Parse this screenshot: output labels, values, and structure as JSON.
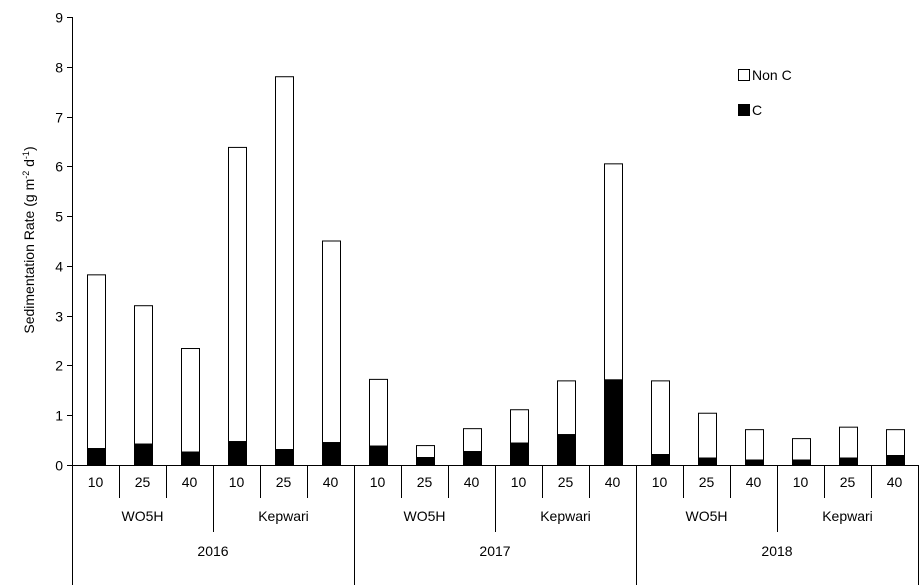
{
  "chart_data": {
    "type": "bar",
    "stacked": true,
    "ylabel_main": "Sedimentation  Rate (g m",
    "ylabel_sup1": "-2",
    "ylabel_mid": " d",
    "ylabel_sup2": "-1",
    "ylabel_end": ")",
    "ylim": [
      0,
      9
    ],
    "yticks": [
      "0",
      "1",
      "2",
      "3",
      "4",
      "5",
      "6",
      "7",
      "8",
      "9"
    ],
    "categories": [
      "10",
      "25",
      "40",
      "10",
      "25",
      "40",
      "10",
      "25",
      "40",
      "10",
      "25",
      "40",
      "10",
      "25",
      "40",
      "10",
      "25",
      "40"
    ],
    "sites": [
      "WO5H",
      "Kepwari",
      "WO5H",
      "Kepwari",
      "WO5H",
      "Kepwari"
    ],
    "years": [
      "2016",
      "2017",
      "2018"
    ],
    "series": [
      {
        "name": "C",
        "color": "#000000",
        "values": [
          0.33,
          0.42,
          0.26,
          0.47,
          0.31,
          0.45,
          0.38,
          0.15,
          0.27,
          0.44,
          0.61,
          1.71,
          0.21,
          0.14,
          0.1,
          0.1,
          0.14,
          0.19
        ]
      },
      {
        "name": "Non C",
        "color": "#ffffff",
        "values": [
          3.49,
          2.78,
          2.08,
          5.91,
          7.49,
          4.05,
          1.34,
          0.24,
          0.46,
          0.67,
          1.08,
          4.34,
          1.48,
          0.9,
          0.61,
          0.43,
          0.62,
          0.52
        ]
      }
    ],
    "legend": [
      {
        "label": "Non C",
        "fill": "#ffffff"
      },
      {
        "label": "C",
        "fill": "#000000"
      }
    ],
    "legend_position": "top-right",
    "grid": false
  }
}
